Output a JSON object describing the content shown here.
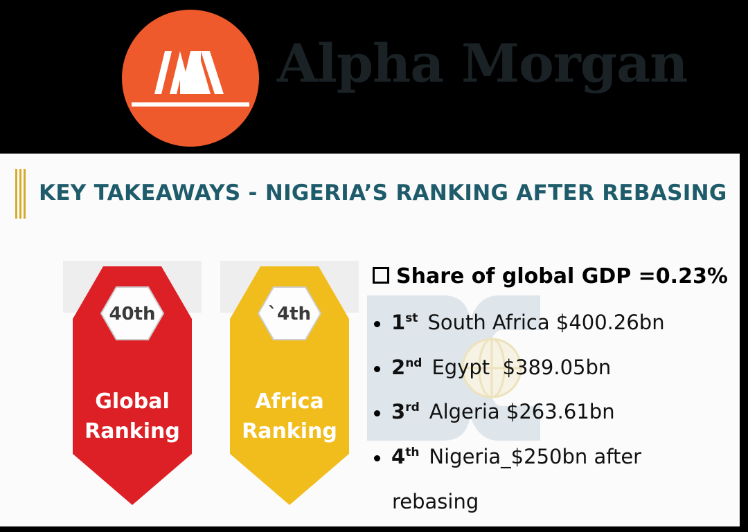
{
  "brand": {
    "name": "Alpha Morgan",
    "logo_icon": "alpha-morgan-logo-icon",
    "colors": {
      "logo_orange": "#ee5a2c",
      "name_text": "#1a2226"
    }
  },
  "slide": {
    "title": "KEY TAKEAWAYS - NIGERIA’S RANKING AFTER REBASING",
    "colors": {
      "title": "#1f5c6b",
      "accent_bar": "#d6ab2c"
    }
  },
  "badges": [
    {
      "rank": "40th",
      "label_line1": "Global",
      "label_line2": "Ranking",
      "color": "#dd2025"
    },
    {
      "rank": "`4th",
      "label_line1": "Africa",
      "label_line2": "Ranking",
      "color": "#f1bd1d"
    }
  ],
  "summary": {
    "headline": "Share of global GDP =0.23%",
    "items": [
      {
        "rank": "1",
        "suffix": "st",
        "text": "South Africa $400.26bn"
      },
      {
        "rank": "2",
        "suffix": "nd",
        "text": "Egypt  $389.05bn"
      },
      {
        "rank": "3",
        "suffix": "rd",
        "text": "Algeria $263.61bn"
      },
      {
        "rank": "4",
        "suffix": "th",
        "text": "Nigeria_$250bn after"
      }
    ],
    "continuation": "rebasing"
  }
}
